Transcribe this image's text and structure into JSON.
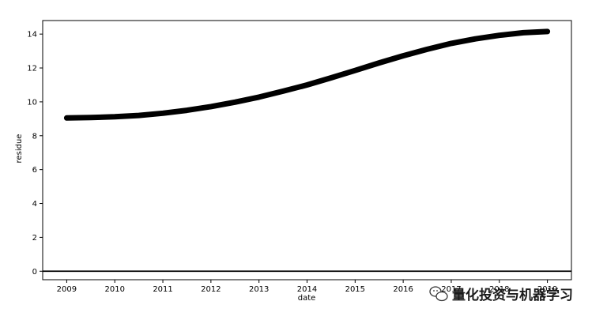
{
  "chart_data": {
    "type": "line",
    "xlabel": "date",
    "ylabel": "residue",
    "x_ticks": [
      "2009",
      "2010",
      "2011",
      "2012",
      "2013",
      "2014",
      "2015",
      "2016",
      "2017",
      "2018",
      "2019"
    ],
    "y_ticks": [
      "0",
      "2",
      "4",
      "6",
      "8",
      "10",
      "12",
      "14"
    ],
    "xlim": [
      2008.5,
      2019.5
    ],
    "ylim": [
      -0.5,
      14.8
    ],
    "grid": false,
    "series": [
      {
        "color": "#000000",
        "x": [
          2009.0,
          2009.5,
          2010.0,
          2010.5,
          2011.0,
          2011.5,
          2012.0,
          2012.5,
          2013.0,
          2013.5,
          2014.0,
          2014.5,
          2015.0,
          2015.5,
          2016.0,
          2016.5,
          2017.0,
          2017.5,
          2018.0,
          2018.5,
          2019.0
        ],
        "y": [
          9.05,
          9.07,
          9.12,
          9.2,
          9.33,
          9.5,
          9.72,
          9.98,
          10.28,
          10.63,
          11.0,
          11.42,
          11.85,
          12.3,
          12.72,
          13.1,
          13.45,
          13.72,
          13.93,
          14.08,
          14.15
        ]
      }
    ],
    "hline": {
      "y": 0,
      "color": "#000000"
    }
  },
  "watermark": {
    "icon": "wechat-icon",
    "text": "量化投资与机器学习"
  }
}
